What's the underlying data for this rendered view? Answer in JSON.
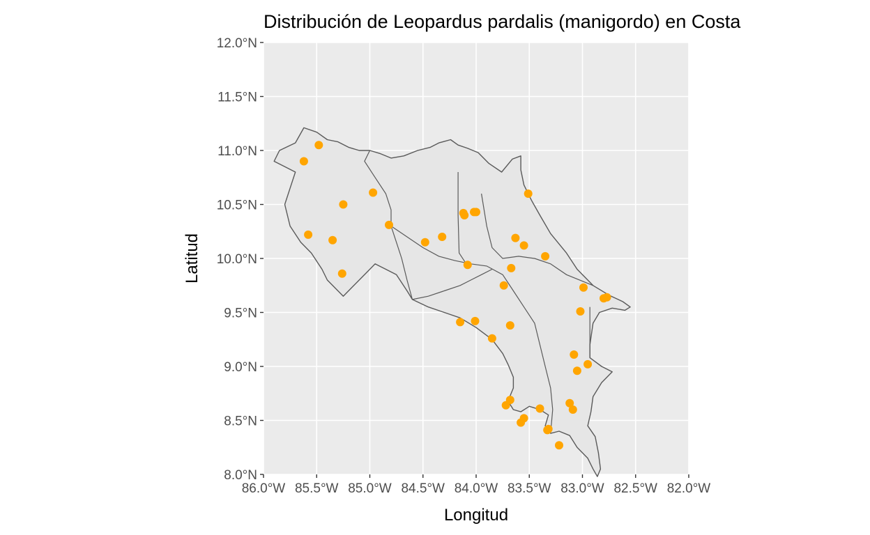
{
  "chart_data": {
    "type": "scatter",
    "title": "Distribución de Leopardus pardalis (manigordo) en Costa",
    "xlabel": "Longitud",
    "ylabel": "Latitud",
    "xlim": [
      -86.0,
      -82.0
    ],
    "ylim": [
      8.0,
      12.0
    ],
    "x_ticks": [
      -86.0,
      -85.5,
      -85.0,
      -84.5,
      -84.0,
      -83.5,
      -83.0,
      -82.5,
      -82.0
    ],
    "x_tick_labels": [
      "86.0°W",
      "85.5°W",
      "85.0°W",
      "84.5°W",
      "84.0°W",
      "83.5°W",
      "83.0°W",
      "82.5°W",
      "82.0°W"
    ],
    "y_ticks": [
      8.0,
      8.5,
      9.0,
      9.5,
      10.0,
      10.5,
      11.0,
      11.5,
      12.0
    ],
    "y_tick_labels": [
      "8.0°N",
      "8.5°N",
      "9.0°N",
      "9.5°N",
      "10.0°N",
      "10.5°N",
      "11.0°N",
      "11.5°N",
      "12.0°N"
    ],
    "grid": true,
    "legend": "none",
    "point_color": "#ffa500",
    "panel_background": "#ebebeb",
    "land_fill": "#e6e6e6",
    "border_color": "#595959",
    "outline": [
      [
        -85.62,
        11.21
      ],
      [
        -85.5,
        11.17
      ],
      [
        -85.4,
        11.1
      ],
      [
        -85.3,
        11.08
      ],
      [
        -85.2,
        11.03
      ],
      [
        -85.1,
        11.0
      ],
      [
        -85.0,
        11.0
      ],
      [
        -84.9,
        10.97
      ],
      [
        -84.8,
        10.93
      ],
      [
        -84.68,
        10.95
      ],
      [
        -84.55,
        11.0
      ],
      [
        -84.43,
        11.03
      ],
      [
        -84.35,
        11.07
      ],
      [
        -84.24,
        11.1
      ],
      [
        -84.17,
        11.05
      ],
      [
        -84.08,
        11.02
      ],
      [
        -83.98,
        10.98
      ],
      [
        -83.88,
        10.88
      ],
      [
        -83.76,
        10.8
      ],
      [
        -83.66,
        10.92
      ],
      [
        -83.58,
        10.95
      ],
      [
        -83.58,
        10.82
      ],
      [
        -83.55,
        10.68
      ],
      [
        -83.48,
        10.54
      ],
      [
        -83.4,
        10.4
      ],
      [
        -83.3,
        10.23
      ],
      [
        -83.15,
        10.05
      ],
      [
        -83.05,
        9.9
      ],
      [
        -82.9,
        9.75
      ],
      [
        -82.75,
        9.66
      ],
      [
        -82.62,
        9.6
      ],
      [
        -82.55,
        9.55
      ],
      [
        -82.6,
        9.52
      ],
      [
        -82.72,
        9.54
      ],
      [
        -82.84,
        9.5
      ],
      [
        -82.9,
        9.4
      ],
      [
        -82.93,
        9.2
      ],
      [
        -82.93,
        9.08
      ],
      [
        -82.82,
        9.0
      ],
      [
        -82.72,
        8.95
      ],
      [
        -82.82,
        8.85
      ],
      [
        -82.9,
        8.72
      ],
      [
        -82.92,
        8.58
      ],
      [
        -82.95,
        8.45
      ],
      [
        -82.88,
        8.35
      ],
      [
        -82.85,
        8.2
      ],
      [
        -82.83,
        8.05
      ],
      [
        -82.86,
        7.98
      ],
      [
        -82.9,
        8.05
      ],
      [
        -82.95,
        8.15
      ],
      [
        -83.05,
        8.25
      ],
      [
        -83.12,
        8.36
      ],
      [
        -83.22,
        8.4
      ],
      [
        -83.3,
        8.38
      ],
      [
        -83.35,
        8.45
      ],
      [
        -83.32,
        8.55
      ],
      [
        -83.4,
        8.6
      ],
      [
        -83.5,
        8.63
      ],
      [
        -83.58,
        8.58
      ],
      [
        -83.65,
        8.6
      ],
      [
        -83.7,
        8.68
      ],
      [
        -83.65,
        8.8
      ],
      [
        -83.65,
        8.9
      ],
      [
        -83.7,
        9.02
      ],
      [
        -83.75,
        9.12
      ],
      [
        -83.85,
        9.25
      ],
      [
        -84.0,
        9.36
      ],
      [
        -84.15,
        9.45
      ],
      [
        -84.3,
        9.5
      ],
      [
        -84.45,
        9.55
      ],
      [
        -84.6,
        9.62
      ],
      [
        -84.65,
        9.7
      ],
      [
        -84.75,
        9.85
      ],
      [
        -84.85,
        9.9
      ],
      [
        -84.95,
        9.95
      ],
      [
        -85.05,
        9.85
      ],
      [
        -85.15,
        9.75
      ],
      [
        -85.25,
        9.65
      ],
      [
        -85.4,
        9.8
      ],
      [
        -85.45,
        9.9
      ],
      [
        -85.55,
        10.05
      ],
      [
        -85.65,
        10.15
      ],
      [
        -85.75,
        10.3
      ],
      [
        -85.8,
        10.5
      ],
      [
        -85.75,
        10.65
      ],
      [
        -85.7,
        10.8
      ],
      [
        -85.8,
        10.85
      ],
      [
        -85.9,
        10.9
      ],
      [
        -85.85,
        11.0
      ],
      [
        -85.7,
        11.07
      ]
    ],
    "internal_borders": [
      [
        [
          -85.0,
          11.0
        ],
        [
          -85.05,
          10.9
        ],
        [
          -84.95,
          10.75
        ],
        [
          -84.85,
          10.6
        ],
        [
          -84.8,
          10.45
        ],
        [
          -84.8,
          10.3
        ],
        [
          -84.75,
          10.15
        ],
        [
          -84.7,
          10.0
        ],
        [
          -84.65,
          9.8
        ],
        [
          -84.6,
          9.62
        ]
      ],
      [
        [
          -84.8,
          10.3
        ],
        [
          -84.65,
          10.2
        ],
        [
          -84.5,
          10.1
        ],
        [
          -84.35,
          10.02
        ],
        [
          -84.2,
          9.98
        ],
        [
          -84.05,
          9.95
        ],
        [
          -83.9,
          9.93
        ],
        [
          -83.75,
          9.85
        ],
        [
          -83.65,
          9.7
        ],
        [
          -83.55,
          9.55
        ],
        [
          -83.45,
          9.4
        ],
        [
          -83.4,
          9.2
        ],
        [
          -83.35,
          9.0
        ],
        [
          -83.3,
          8.8
        ],
        [
          -83.28,
          8.6
        ],
        [
          -83.3,
          8.38
        ]
      ],
      [
        [
          -84.17,
          10.8
        ],
        [
          -84.17,
          10.4
        ],
        [
          -84.16,
          10.05
        ],
        [
          -84.1,
          9.96
        ]
      ],
      [
        [
          -83.95,
          10.6
        ],
        [
          -83.9,
          10.3
        ],
        [
          -83.85,
          10.1
        ],
        [
          -83.75,
          10.0
        ],
        [
          -83.6,
          10.02
        ],
        [
          -83.45,
          10.0
        ],
        [
          -83.3,
          9.95
        ],
        [
          -83.15,
          9.85
        ],
        [
          -82.9,
          9.75
        ]
      ],
      [
        [
          -82.93,
          9.55
        ],
        [
          -82.93,
          9.08
        ]
      ],
      [
        [
          -84.6,
          9.62
        ],
        [
          -84.45,
          9.65
        ],
        [
          -84.3,
          9.7
        ],
        [
          -84.15,
          9.75
        ],
        [
          -84.05,
          9.8
        ],
        [
          -83.95,
          9.85
        ],
        [
          -83.85,
          9.9
        ]
      ]
    ],
    "series": [
      {
        "x": [
          -85.48,
          -85.62,
          -84.97,
          -85.25,
          -85.58,
          -85.35,
          -85.26,
          -84.82,
          -84.48,
          -84.32,
          -84.12,
          -84.11,
          -84.02,
          -84.0,
          -84.08,
          -83.63,
          -83.55,
          -83.35,
          -83.51,
          -83.67,
          -83.74,
          -82.99,
          -83.02,
          -82.8,
          -82.77,
          -83.08,
          -82.95,
          -83.05,
          -84.15,
          -84.01,
          -83.85,
          -83.68,
          -83.72,
          -83.68,
          -83.4,
          -83.58,
          -83.55,
          -83.12,
          -83.09,
          -83.33,
          -83.32,
          -83.22
        ],
        "y": [
          11.05,
          10.9,
          10.61,
          10.5,
          10.22,
          10.17,
          9.86,
          10.31,
          10.15,
          10.2,
          10.42,
          10.4,
          10.43,
          10.43,
          9.94,
          10.19,
          10.12,
          10.02,
          10.6,
          9.91,
          9.75,
          9.73,
          9.51,
          9.63,
          9.64,
          9.11,
          9.02,
          8.96,
          9.41,
          9.42,
          9.26,
          9.38,
          8.64,
          8.69,
          8.61,
          8.48,
          8.52,
          8.66,
          8.6,
          8.41,
          8.42,
          8.27
        ]
      }
    ]
  }
}
